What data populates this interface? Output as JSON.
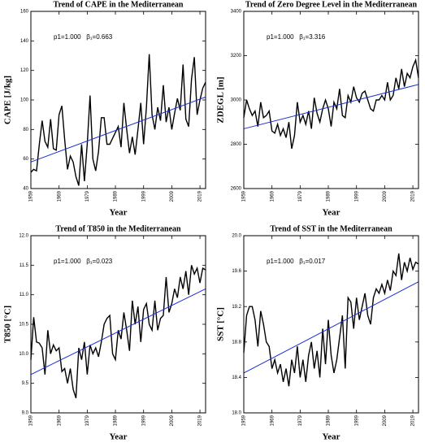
{
  "chart_data": [
    {
      "type": "line",
      "title": "Trend of CAPE in the Mediterranean",
      "annotation": "p1=1.000   β₁=0.663",
      "xlabel": "Year",
      "ylabel": "CAPE [J/kg]",
      "x": [
        1959,
        1960,
        1961,
        1962,
        1963,
        1964,
        1965,
        1966,
        1967,
        1968,
        1969,
        1970,
        1971,
        1972,
        1973,
        1974,
        1975,
        1976,
        1977,
        1978,
        1979,
        1980,
        1981,
        1982,
        1983,
        1984,
        1985,
        1986,
        1987,
        1988,
        1989,
        1990,
        1991,
        1992,
        1993,
        1994,
        1995,
        1996,
        1997,
        1998,
        1999,
        2000,
        2001,
        2002,
        2003,
        2004,
        2005,
        2006,
        2007,
        2008,
        2009,
        2010,
        2011,
        2012,
        2013,
        2014,
        2015,
        2016,
        2017,
        2018,
        2019,
        2020,
        2021
      ],
      "values": [
        51,
        53,
        52,
        70,
        86,
        72,
        68,
        87,
        67,
        66,
        90,
        96,
        73,
        53,
        62,
        58,
        48,
        42,
        70,
        45,
        70,
        103,
        60,
        52,
        65,
        88,
        88,
        70,
        70,
        74,
        78,
        82,
        68,
        98,
        80,
        64,
        75,
        63,
        80,
        98,
        70,
        95,
        131,
        90,
        80,
        95,
        86,
        110,
        85,
        95,
        80,
        91,
        101,
        93,
        124,
        87,
        82,
        114,
        129,
        90,
        100,
        108,
        112
      ],
      "color": "#000000",
      "trend_line": {
        "x": [
          1959,
          2021
        ],
        "values": [
          58,
          102
        ],
        "color": "#1a2fd6"
      },
      "xlim": [
        1959,
        2021
      ],
      "xticks": [
        1959,
        1969,
        1979,
        1989,
        1999,
        2009,
        2019
      ],
      "ylim": [
        40,
        160
      ],
      "yticks": [
        40,
        60,
        80,
        100,
        120,
        140,
        160
      ]
    },
    {
      "type": "line",
      "title": "Trend of Zero Degree Level in the Mediterranean",
      "annotation": "p1=1.000   β₁=3.316",
      "xlabel": "Year",
      "ylabel": "ZDEGL [m]",
      "x": [
        1959,
        1960,
        1961,
        1962,
        1963,
        1964,
        1965,
        1966,
        1967,
        1968,
        1969,
        1970,
        1971,
        1972,
        1973,
        1974,
        1975,
        1976,
        1977,
        1978,
        1979,
        1980,
        1981,
        1982,
        1983,
        1984,
        1985,
        1986,
        1987,
        1988,
        1989,
        1990,
        1991,
        1992,
        1993,
        1994,
        1995,
        1996,
        1997,
        1998,
        1999,
        2000,
        2001,
        2002,
        2003,
        2004,
        2005,
        2006,
        2007,
        2008,
        2009,
        2010,
        2011,
        2012,
        2013,
        2014,
        2015,
        2016,
        2017,
        2018,
        2019,
        2020,
        2021
      ],
      "values": [
        2920,
        3000,
        2960,
        2930,
        2950,
        2880,
        2990,
        2920,
        2930,
        2950,
        2860,
        2850,
        2890,
        2840,
        2870,
        2830,
        2900,
        2780,
        2840,
        2990,
        2900,
        2930,
        2890,
        2950,
        2870,
        3010,
        2940,
        2900,
        2960,
        3000,
        2960,
        2880,
        2990,
        2960,
        3050,
        2930,
        2920,
        3020,
        2990,
        3060,
        3010,
        2990,
        3030,
        3040,
        3000,
        2960,
        2950,
        3000,
        3000,
        3020,
        3000,
        3080,
        3000,
        3020,
        3100,
        3050,
        3140,
        3060,
        3120,
        3100,
        3150,
        3180,
        3100
      ],
      "color": "#000000",
      "trend_line": {
        "x": [
          1959,
          2021
        ],
        "values": [
          2870,
          3070
        ],
        "color": "#1a2fd6"
      },
      "xlim": [
        1959,
        2021
      ],
      "xticks": [
        1959,
        1969,
        1979,
        1989,
        1999,
        2009,
        2019
      ],
      "ylim": [
        2600,
        3400
      ],
      "yticks": [
        2600,
        2800,
        3000,
        3200,
        3400
      ]
    },
    {
      "type": "line",
      "title": "Trend of T850 in the Mediterranean",
      "annotation": "p1=1.000   β₁=0.023",
      "xlabel": "Year",
      "ylabel": "T850 [°C]",
      "x": [
        1959,
        1960,
        1961,
        1962,
        1963,
        1964,
        1965,
        1966,
        1967,
        1968,
        1969,
        1970,
        1971,
        1972,
        1973,
        1974,
        1975,
        1976,
        1977,
        1978,
        1979,
        1980,
        1981,
        1982,
        1983,
        1984,
        1985,
        1986,
        1987,
        1988,
        1989,
        1990,
        1991,
        1992,
        1993,
        1994,
        1995,
        1996,
        1997,
        1998,
        1999,
        2000,
        2001,
        2002,
        2003,
        2004,
        2005,
        2006,
        2007,
        2008,
        2009,
        2010,
        2011,
        2012,
        2013,
        2014,
        2015,
        2016,
        2017,
        2018,
        2019,
        2020,
        2021
      ],
      "values": [
        9.9,
        10.62,
        10.2,
        10.18,
        10.1,
        9.65,
        10.4,
        10.0,
        10.15,
        10.05,
        10.1,
        9.7,
        9.75,
        9.5,
        9.75,
        9.4,
        9.25,
        10.1,
        9.9,
        10.2,
        9.65,
        10.15,
        10.0,
        10.1,
        9.95,
        10.2,
        10.5,
        10.6,
        10.65,
        10.0,
        9.9,
        10.4,
        10.25,
        10.7,
        10.4,
        10.05,
        10.9,
        10.5,
        10.8,
        10.2,
        10.75,
        10.85,
        10.5,
        10.4,
        10.9,
        10.4,
        10.6,
        10.65,
        11.3,
        10.7,
        10.85,
        11.1,
        10.95,
        11.3,
        11.1,
        11.4,
        11.0,
        11.5,
        11.35,
        11.45,
        11.2,
        11.45,
        11.42
      ],
      "color": "#000000",
      "trend_line": {
        "x": [
          1959,
          2021
        ],
        "values": [
          9.65,
          11.1
        ],
        "color": "#1a2fd6"
      },
      "xlim": [
        1959,
        2021
      ],
      "xticks": [
        1959,
        1969,
        1979,
        1989,
        1999,
        2009,
        2019
      ],
      "ylim": [
        9,
        12
      ],
      "yticks": [
        {
          "value": 9,
          "label": "9.0"
        },
        9.5,
        {
          "value": 10,
          "label": "10.0"
        },
        10.5,
        {
          "value": 11,
          "label": "11.0"
        },
        11.5,
        {
          "value": 12,
          "label": "12.0"
        }
      ]
    },
    {
      "type": "line",
      "title": "Trend of SST in the Mediterranean",
      "annotation": "p1=1.000   β₁=0.017",
      "xlabel": "Year",
      "ylabel": "SST [°C]",
      "x": [
        1959,
        1960,
        1961,
        1962,
        1963,
        1964,
        1965,
        1966,
        1967,
        1968,
        1969,
        1970,
        1971,
        1972,
        1973,
        1974,
        1975,
        1976,
        1977,
        1978,
        1979,
        1980,
        1981,
        1982,
        1983,
        1984,
        1985,
        1986,
        1987,
        1988,
        1989,
        1990,
        1991,
        1992,
        1993,
        1994,
        1995,
        1996,
        1997,
        1998,
        1999,
        2000,
        2001,
        2002,
        2003,
        2004,
        2005,
        2006,
        2007,
        2008,
        2009,
        2010,
        2011,
        2012,
        2013,
        2014,
        2015,
        2016,
        2017,
        2018,
        2019,
        2020,
        2021
      ],
      "values": [
        18.68,
        19.1,
        19.2,
        19.2,
        19.05,
        18.75,
        19.15,
        19.0,
        18.8,
        18.75,
        18.5,
        18.6,
        18.45,
        18.55,
        18.35,
        18.5,
        18.3,
        18.6,
        18.45,
        18.75,
        18.4,
        18.6,
        18.35,
        18.65,
        18.8,
        18.5,
        18.7,
        18.4,
        18.95,
        18.55,
        19.05,
        18.65,
        18.45,
        18.6,
        18.85,
        19.1,
        18.5,
        19.3,
        19.25,
        18.95,
        19.3,
        19.05,
        19.2,
        19.35,
        19.1,
        19.0,
        19.3,
        19.4,
        19.35,
        19.45,
        19.35,
        19.5,
        19.38,
        19.6,
        19.55,
        19.8,
        19.5,
        19.7,
        19.6,
        19.75,
        19.62,
        19.7,
        19.68
      ],
      "color": "#000000",
      "trend_line": {
        "x": [
          1959,
          2021
        ],
        "values": [
          18.45,
          19.48
        ],
        "color": "#1a2fd6"
      },
      "xlim": [
        1959,
        2021
      ],
      "xticks": [
        1959,
        1969,
        1979,
        1989,
        1999,
        2009,
        2019
      ],
      "ylim": [
        18,
        20
      ],
      "yticks": [
        {
          "value": 18,
          "label": "18.0"
        },
        18.4,
        18.8,
        19.2,
        19.6,
        {
          "value": 20,
          "label": "20.0"
        }
      ]
    }
  ]
}
